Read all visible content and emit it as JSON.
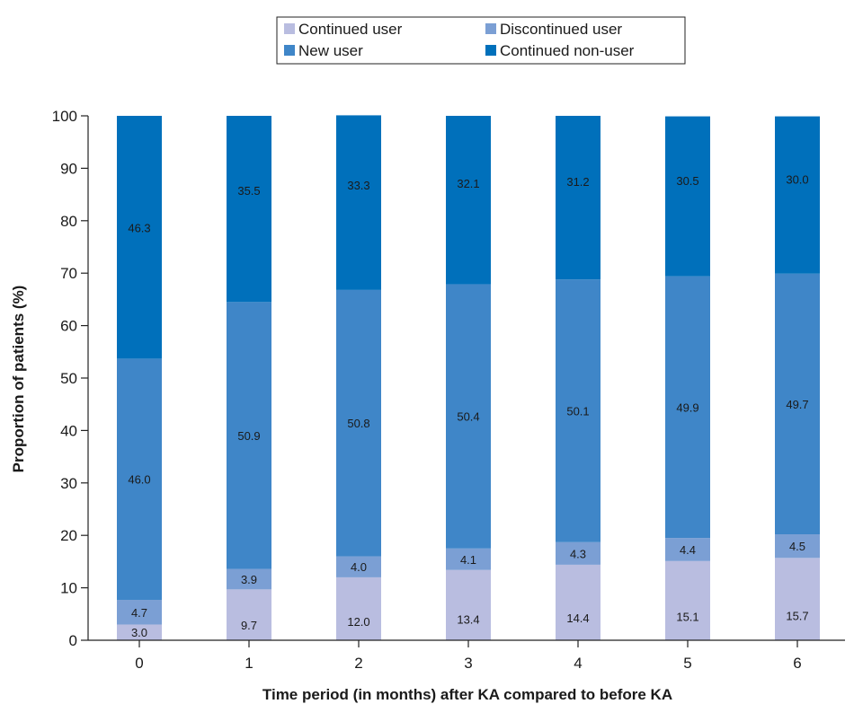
{
  "chart_data": {
    "type": "bar",
    "stacked": true,
    "title": "",
    "xlabel": "Time period (in months) after KA compared to before KA",
    "ylabel": "Proportion of patients (%)",
    "ylim": [
      0,
      100
    ],
    "yticks": [
      0,
      10,
      20,
      30,
      40,
      50,
      60,
      70,
      80,
      90,
      100
    ],
    "categories": [
      "0",
      "1",
      "2",
      "3",
      "4",
      "5",
      "6"
    ],
    "grid": false,
    "legend_position": "top",
    "series": [
      {
        "name": "Continued user",
        "color": "#b9bde0",
        "values": [
          3.0,
          9.7,
          12.0,
          13.4,
          14.4,
          15.1,
          15.7
        ],
        "labels": [
          "3.0",
          "9.7",
          "12.0",
          "13.4",
          "14.4",
          "15.1",
          "15.7"
        ]
      },
      {
        "name": "Discontinued user",
        "color": "#7b9fd4",
        "values": [
          4.7,
          3.9,
          4.0,
          4.1,
          4.3,
          4.4,
          4.5
        ],
        "labels": [
          "4.7",
          "3.9",
          "4.0",
          "4.1",
          "4.3",
          "4.4",
          "4.5"
        ]
      },
      {
        "name": "New user",
        "color": "#3f86c8",
        "values": [
          46.0,
          50.9,
          50.8,
          50.4,
          50.1,
          49.9,
          49.7
        ],
        "labels": [
          "46.0",
          "50.9",
          "50.8",
          "50.4",
          "50.1",
          "49.9",
          "49.7"
        ]
      },
      {
        "name": "Continued non-user",
        "color": "#0070bb",
        "values": [
          46.3,
          35.5,
          33.3,
          32.1,
          31.2,
          30.5,
          30.0
        ],
        "labels": [
          "46.3",
          "35.5",
          "33.3",
          "32.1",
          "31.2",
          "30.5",
          "30.0"
        ]
      }
    ]
  }
}
